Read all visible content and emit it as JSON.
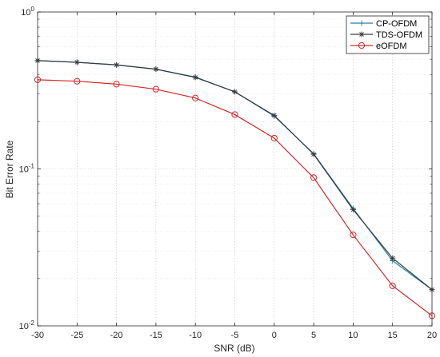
{
  "chart_data": {
    "type": "line",
    "title": "",
    "xlabel": "SNR (dB)",
    "ylabel": "Bit Error Rate",
    "xlim": [
      -30,
      20
    ],
    "ylim": [
      0.01,
      1
    ],
    "yscale": "log",
    "grid": true,
    "legend_position": "top-right",
    "x": [
      -30,
      -25,
      -20,
      -15,
      -10,
      -5,
      0,
      5,
      10,
      15,
      20
    ],
    "x_tick_labels": [
      "-30",
      "-25",
      "-20",
      "-15",
      "-10",
      "-5",
      "0",
      "5",
      "10",
      "15",
      "20"
    ],
    "y_ticks": [
      {
        "value": 1,
        "base": "10",
        "exp": "0"
      },
      {
        "value": 0.1,
        "base": "10",
        "exp": "-1"
      },
      {
        "value": 0.01,
        "base": "10",
        "exp": "-2"
      }
    ],
    "series": [
      {
        "name": "CP-OFDM",
        "color": "#1f7fa8",
        "marker": "plus",
        "values": [
          0.49,
          0.478,
          0.46,
          0.432,
          0.385,
          0.31,
          0.217,
          0.125,
          0.056,
          0.026,
          0.017
        ]
      },
      {
        "name": "TDS-OFDM",
        "color": "#3a3a3a",
        "marker": "asterisk",
        "values": [
          0.49,
          0.478,
          0.46,
          0.432,
          0.383,
          0.31,
          0.219,
          0.124,
          0.055,
          0.027,
          0.017
        ]
      },
      {
        "name": "eOFDM",
        "color": "#d62728",
        "marker": "circle",
        "values": [
          0.37,
          0.362,
          0.347,
          0.322,
          0.283,
          0.222,
          0.157,
          0.088,
          0.038,
          0.018,
          0.0116
        ]
      }
    ]
  }
}
